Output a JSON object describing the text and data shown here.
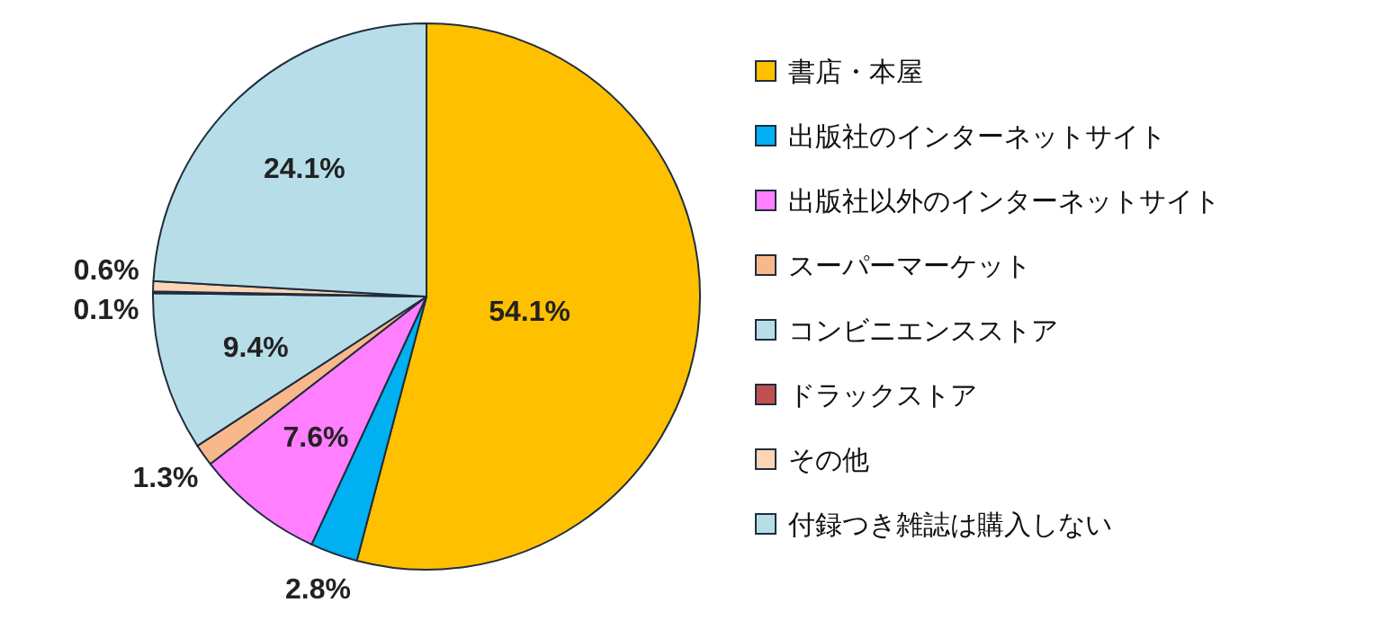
{
  "chart_data": {
    "type": "pie",
    "categories": [
      "書店・本屋",
      "出版社のインターネットサイト",
      "出版社以外のインターネットサイト",
      "スーパーマーケット",
      "コンビニエンスストア",
      "ドラックストア",
      "その他",
      "付録つき雑誌は購入しない"
    ],
    "values": [
      54.1,
      2.8,
      7.6,
      1.3,
      9.4,
      0.1,
      0.6,
      24.1
    ],
    "colors": [
      "#ffc000",
      "#00b0f0",
      "#ff7fff",
      "#f8b88b",
      "#b7dee8",
      "#c0504d",
      "#fbd5b5",
      "#b7dee8"
    ],
    "value_labels": [
      "54.1%",
      "2.8%",
      "7.6%",
      "1.3%",
      "9.4%",
      "0.1%",
      "0.6%",
      "24.1%"
    ],
    "legend": "right"
  }
}
